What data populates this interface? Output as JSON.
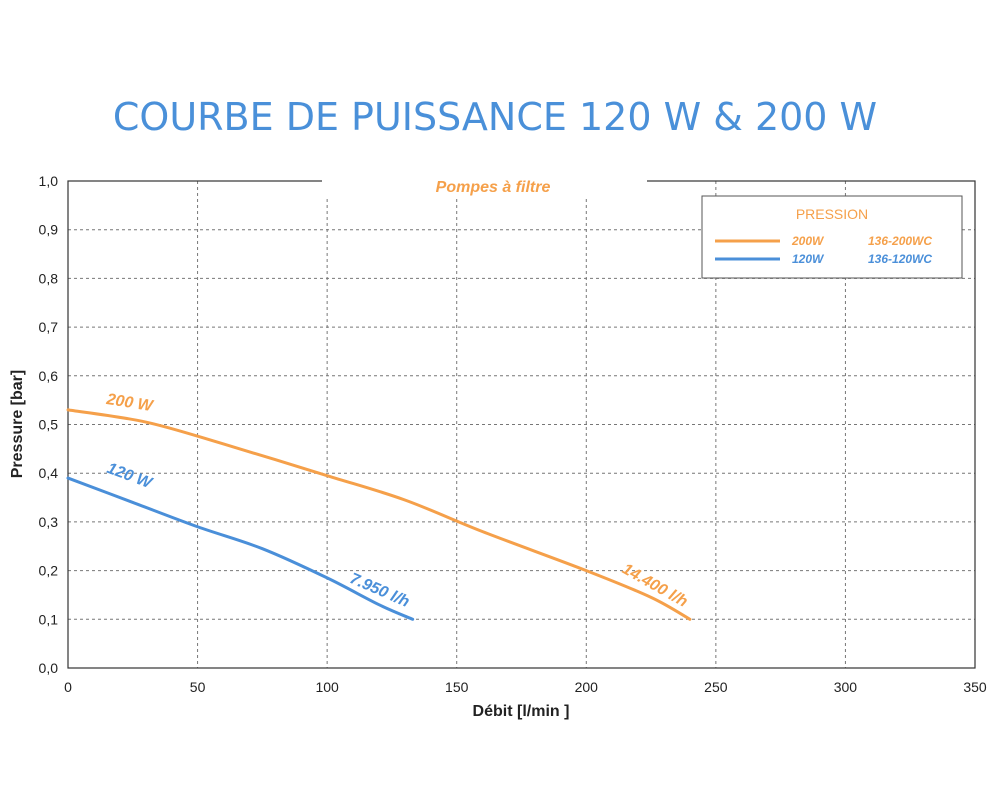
{
  "chart_data": {
    "type": "line",
    "title": "COURBE DE PUISSANCE 120 W & 200 W",
    "subtitle": "Pompes à filtre",
    "xlabel": "Débit [l/min ]",
    "ylabel": "Pressure [bar]",
    "xlim": [
      0,
      350
    ],
    "ylim": [
      0,
      1.0
    ],
    "x_ticks": [
      0,
      50,
      100,
      150,
      200,
      250,
      300,
      350
    ],
    "x_tick_labels": [
      "0",
      "50",
      "100",
      "150",
      "200",
      "250",
      "300",
      "350"
    ],
    "y_ticks": [
      0,
      0.1,
      0.2,
      0.3,
      0.4,
      0.5,
      0.6,
      0.7,
      0.8,
      0.9,
      1.0
    ],
    "y_tick_labels": [
      "0,0",
      "0,1",
      "0,2",
      "0,3",
      "0,4",
      "0,5",
      "0,6",
      "0,7",
      "0,8",
      "0,9",
      "1,0"
    ],
    "grid": true,
    "legend": {
      "title": "PRESSION",
      "placement": "top-right",
      "entries": [
        {
          "label": "200W",
          "model": "136-200WC",
          "color": "#f5a04a"
        },
        {
          "label": "120W",
          "model": "136-120WC",
          "color": "#4a8fd9"
        }
      ]
    },
    "series": [
      {
        "name": "200 W",
        "color": "#f5a04a",
        "end_label": "14.400 l/h",
        "x": [
          0,
          30,
          60,
          100,
          130,
          160,
          200,
          225,
          240
        ],
        "y": [
          0.53,
          0.505,
          0.46,
          0.395,
          0.345,
          0.28,
          0.2,
          0.145,
          0.1
        ]
      },
      {
        "name": "120 W",
        "color": "#4a8fd9",
        "end_label": "7.950 l/h",
        "x": [
          0,
          25,
          50,
          75,
          100,
          120,
          133
        ],
        "y": [
          0.39,
          0.34,
          0.29,
          0.245,
          0.185,
          0.13,
          0.1
        ]
      }
    ]
  }
}
